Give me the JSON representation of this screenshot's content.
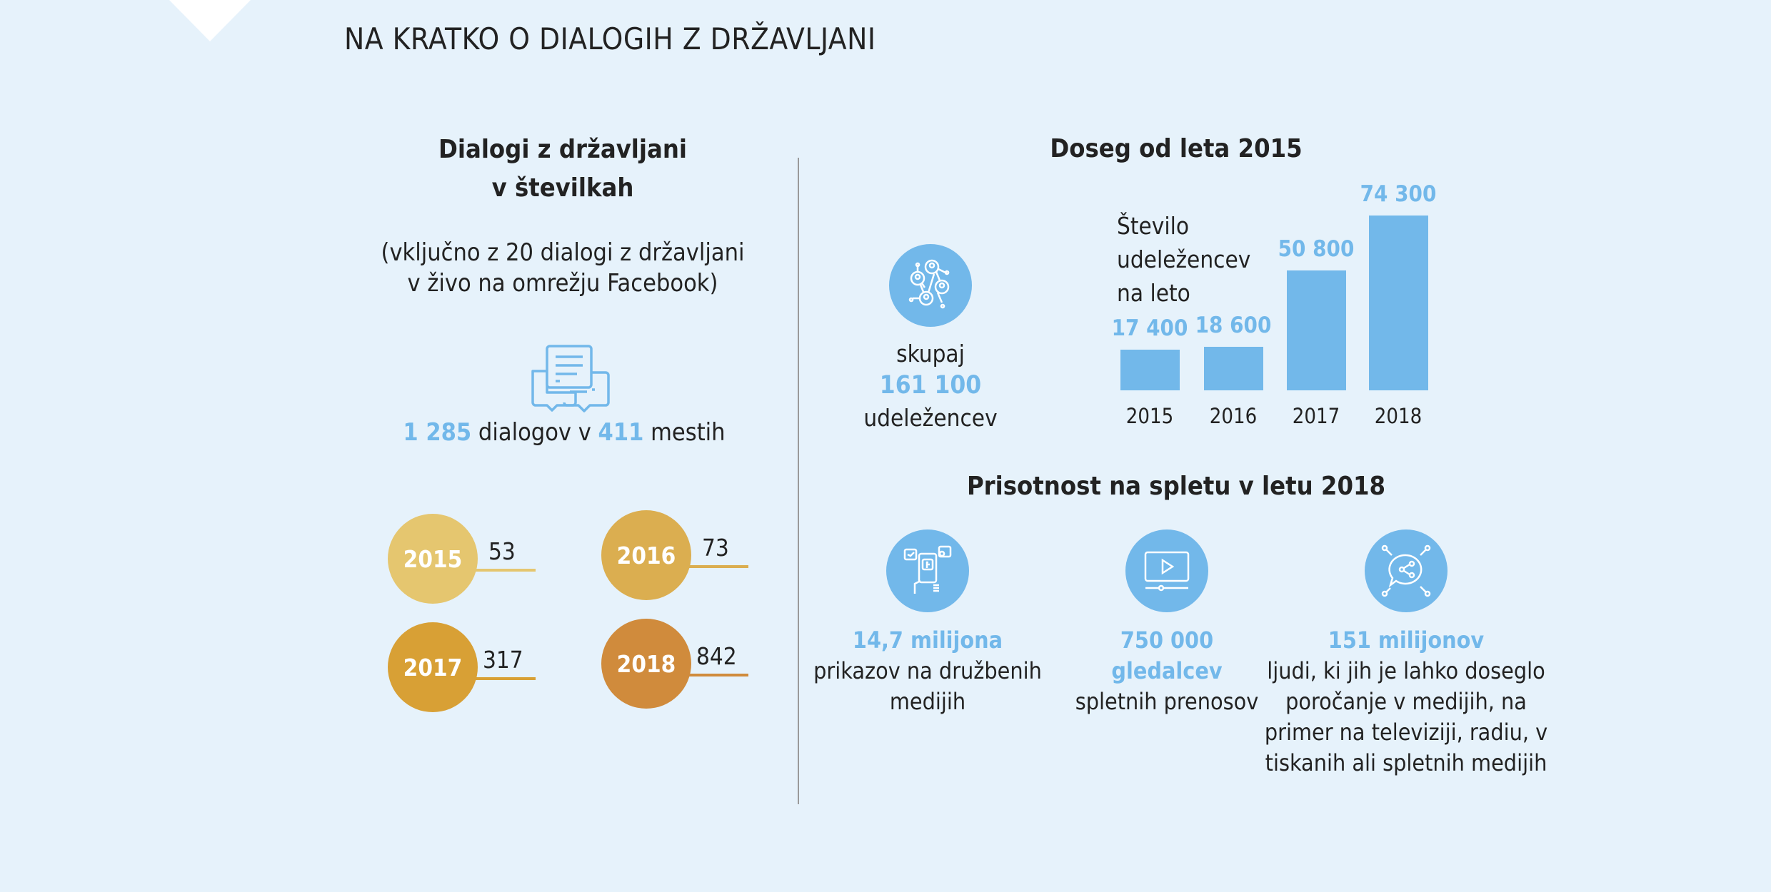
{
  "title": "NA KRATKO O DIALOGIH Z DRŽAVLJANI",
  "left": {
    "heading_line1": "Dialogi z državljani",
    "heading_line2": "v številkah",
    "note_line1": "(vključno z 20 dialogi z državljani",
    "note_line2": "v živo na omrežju Facebook)",
    "icon": "chat-bubbles-icon",
    "dialogs_count": "1 285",
    "dialogs_text": " dialogov v ",
    "cities_count": "411",
    "cities_text": " mestih",
    "years": [
      {
        "year": "2015",
        "count": "53",
        "color": "#e5c66f"
      },
      {
        "year": "2016",
        "count": "73",
        "color": "#dbae50"
      },
      {
        "year": "2017",
        "count": "317",
        "color": "#d8a035"
      },
      {
        "year": "2018",
        "count": "842",
        "color": "#d08b3c"
      }
    ]
  },
  "right": {
    "heading": "Doseg od leta 2015",
    "total_icon": "network-people-icon",
    "total_label": "skupaj",
    "total_value": "161 100",
    "total_unit": "udeležencev",
    "chart_label_line1": "Število",
    "chart_label_line2": "udeležencev",
    "chart_label_line3": "na leto",
    "online_heading": "Prisotnost na spletu v letu 2018",
    "online": [
      {
        "icon": "social-media-phone-icon",
        "value": "14,7 milijona",
        "lines": [
          "prikazov na družbenih",
          "medijih"
        ]
      },
      {
        "icon": "video-player-icon",
        "value": "750 000",
        "value2": "gledalcev",
        "lines": [
          "spletnih prenosov"
        ]
      },
      {
        "icon": "media-share-icon",
        "value": "151 milijonov",
        "lines": [
          "ljudi, ki jih je lahko doseglo",
          "poročanje v medijih, na",
          "primer na televiziji, radiu, v",
          "tiskanih ali spletnih medijih"
        ]
      }
    ]
  },
  "colors": {
    "accent": "#72b8ea",
    "background": "#e6f2fb"
  },
  "chart_data": {
    "type": "bar",
    "categories": [
      "2015",
      "2016",
      "2017",
      "2018"
    ],
    "values": [
      17400,
      18600,
      50800,
      74300
    ],
    "value_labels": [
      "17 400",
      "18 600",
      "50 800",
      "74 300"
    ],
    "title": "Število udeležencev na leto",
    "ylim": [
      0,
      74300
    ],
    "grid": false
  }
}
